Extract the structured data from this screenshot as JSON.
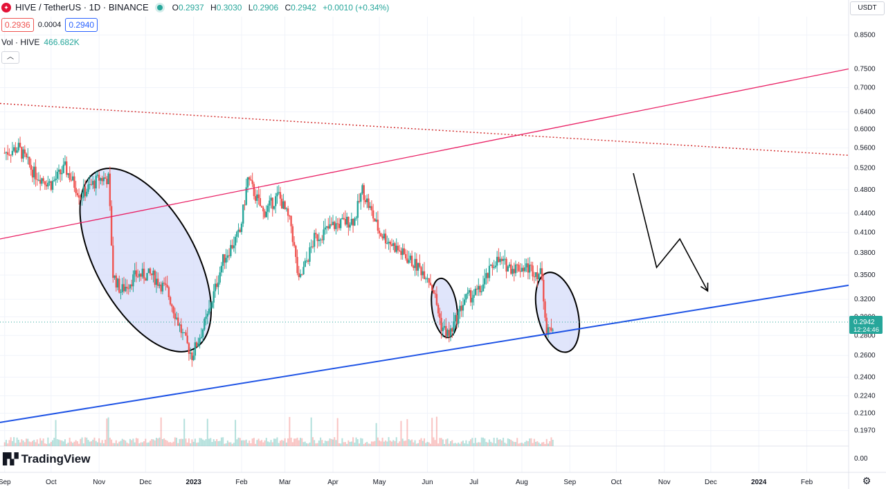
{
  "header": {
    "symbol_icon": "hive-logo-icon",
    "title": "HIVE / TetherUS · 1D · BINANCE",
    "open_label": "O",
    "open": "0.2937",
    "high_label": "H",
    "high": "0.3030",
    "low_label": "L",
    "low": "0.2906",
    "close_label": "C",
    "close": "0.2942",
    "change": "+0.0010 (+0.34%)",
    "bid": "0.2936",
    "spread": "0.0004",
    "ask": "0.2940",
    "vol_label": "Vol · HIVE",
    "vol_value": "466.682K",
    "currency": "USDT",
    "brand": "TradingView"
  },
  "colors": {
    "up": "#26a69a",
    "down": "#ef5350",
    "trend_red": "#e91e63",
    "trend_blue": "#1e53e5",
    "ellipse_fill": "#d6dcfa",
    "grid": "#f0f3fa"
  },
  "chart_data": {
    "type": "candlestick",
    "title": "HIVE / TetherUS · 1D · BINANCE",
    "y_scale": "log",
    "ylim": [
      0.186,
      0.91
    ],
    "y_ticks": [
      "0.8500",
      "0.7500",
      "0.7000",
      "0.6400",
      "0.6000",
      "0.5600",
      "0.5200",
      "0.4800",
      "0.4400",
      "0.4100",
      "0.3800",
      "0.3500",
      "0.3200",
      "0.3000",
      "0.2800",
      "0.2600",
      "0.2400",
      "0.2240",
      "0.2100",
      "0.1970"
    ],
    "x_ticks": [
      "Sep",
      "Oct",
      "Nov",
      "Dec",
      "2023",
      "Feb",
      "Mar",
      "Apr",
      "May",
      "Jun",
      "Jul",
      "Aug",
      "Sep",
      "Oct",
      "Nov",
      "Dec",
      "2024",
      "Feb"
    ],
    "last_price": "0.2942",
    "countdown": "12:24:46",
    "volume_scale_tick": "0.00",
    "price_path_approx": [
      {
        "x": "2022-09-01",
        "y": 0.55
      },
      {
        "x": "2022-09-10",
        "y": 0.56
      },
      {
        "x": "2022-09-20",
        "y": 0.51
      },
      {
        "x": "2022-10-01",
        "y": 0.49
      },
      {
        "x": "2022-10-10",
        "y": 0.52
      },
      {
        "x": "2022-10-20",
        "y": 0.47
      },
      {
        "x": "2022-11-01",
        "y": 0.5
      },
      {
        "x": "2022-11-07",
        "y": 0.5
      },
      {
        "x": "2022-11-10",
        "y": 0.35
      },
      {
        "x": "2022-11-15",
        "y": 0.33
      },
      {
        "x": "2022-11-25",
        "y": 0.35
      },
      {
        "x": "2022-12-05",
        "y": 0.35
      },
      {
        "x": "2022-12-15",
        "y": 0.33
      },
      {
        "x": "2022-12-25",
        "y": 0.28
      },
      {
        "x": "2022-12-31",
        "y": 0.26
      },
      {
        "x": "2023-01-10",
        "y": 0.3
      },
      {
        "x": "2023-01-20",
        "y": 0.37
      },
      {
        "x": "2023-01-31",
        "y": 0.41
      },
      {
        "x": "2023-02-05",
        "y": 0.5
      },
      {
        "x": "2023-02-15",
        "y": 0.44
      },
      {
        "x": "2023-02-25",
        "y": 0.47
      },
      {
        "x": "2023-03-05",
        "y": 0.42
      },
      {
        "x": "2023-03-10",
        "y": 0.34
      },
      {
        "x": "2023-03-20",
        "y": 0.4
      },
      {
        "x": "2023-04-01",
        "y": 0.42
      },
      {
        "x": "2023-04-15",
        "y": 0.43
      },
      {
        "x": "2023-04-20",
        "y": 0.48
      },
      {
        "x": "2023-05-01",
        "y": 0.41
      },
      {
        "x": "2023-05-15",
        "y": 0.38
      },
      {
        "x": "2023-06-01",
        "y": 0.35
      },
      {
        "x": "2023-06-05",
        "y": 0.33
      },
      {
        "x": "2023-06-10",
        "y": 0.29
      },
      {
        "x": "2023-06-15",
        "y": 0.28
      },
      {
        "x": "2023-06-25",
        "y": 0.32
      },
      {
        "x": "2023-07-05",
        "y": 0.33
      },
      {
        "x": "2023-07-15",
        "y": 0.37
      },
      {
        "x": "2023-07-25",
        "y": 0.36
      },
      {
        "x": "2023-08-05",
        "y": 0.36
      },
      {
        "x": "2023-08-14",
        "y": 0.35
      },
      {
        "x": "2023-08-17",
        "y": 0.28
      },
      {
        "x": "2023-08-22",
        "y": 0.294
      }
    ],
    "drawings": {
      "red_rising_line": [
        {
          "x": "2022-08-29",
          "y": 0.4
        },
        {
          "x": "2024-02-28",
          "y": 0.75
        }
      ],
      "red_dotted_falling_line": [
        {
          "x": "2022-08-29",
          "y": 0.66
        },
        {
          "x": "2024-02-28",
          "y": 0.545
        }
      ],
      "blue_rising_line": [
        {
          "x": "2022-08-29",
          "y": 0.203
        },
        {
          "x": "2024-02-28",
          "y": 0.337
        }
      ],
      "projection_arrow": [
        {
          "x": "2023-10-12",
          "y": 0.51
        },
        {
          "x": "2023-10-27",
          "y": 0.36
        },
        {
          "x": "2023-11-11",
          "y": 0.4
        },
        {
          "x": "2023-11-29",
          "y": 0.33
        }
      ],
      "ellipses": [
        {
          "center_x": "2022-12-01",
          "center_y": 0.37
        },
        {
          "center_x": "2023-06-12",
          "center_y": 0.31
        },
        {
          "center_x": "2023-08-24",
          "center_y": 0.305
        }
      ]
    }
  }
}
